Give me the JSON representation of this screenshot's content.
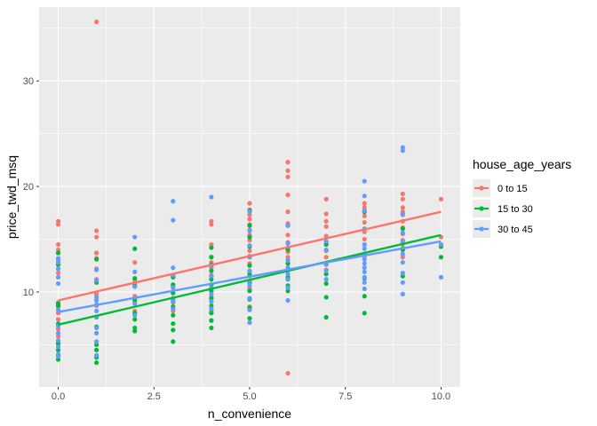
{
  "chart_data": {
    "type": "scatter",
    "xlabel": "n_convenience",
    "ylabel": "price_twd_msq",
    "xlim": [
      -0.5,
      10.5
    ],
    "ylim": [
      1.0,
      37.0
    ],
    "x_ticks": [
      0,
      2.5,
      5,
      7.5,
      10
    ],
    "x_tick_labels": [
      "0.0",
      "2.5",
      "5.0",
      "7.5",
      "10.0"
    ],
    "y_ticks": [
      10,
      20,
      30
    ],
    "y_tick_labels": [
      "10",
      "20",
      "30"
    ],
    "grid": true,
    "legend": {
      "title": "house_age_years",
      "placement": "right"
    },
    "series": [
      {
        "name": "0 to 15",
        "color": "#F8766D",
        "trend": {
          "x": [
            0,
            10
          ],
          "y": [
            9.2,
            17.6
          ]
        },
        "points": [
          [
            0,
            16.7
          ],
          [
            0,
            16.4
          ],
          [
            0,
            14.5
          ],
          [
            0,
            14.0
          ],
          [
            0,
            13.7
          ],
          [
            0,
            13.0
          ],
          [
            0,
            12.6
          ],
          [
            0,
            12.2
          ],
          [
            0,
            11.8
          ],
          [
            0,
            9.0
          ],
          [
            0,
            8.6
          ],
          [
            0,
            8.0
          ],
          [
            0,
            7.4
          ],
          [
            0,
            6.5
          ],
          [
            0,
            5.8
          ],
          [
            0,
            5.2
          ],
          [
            1,
            35.6
          ],
          [
            1,
            15.8
          ],
          [
            1,
            15.2
          ],
          [
            1,
            13.7
          ],
          [
            1,
            13.2
          ],
          [
            1,
            12.2
          ],
          [
            1,
            11.2
          ],
          [
            1,
            9.8
          ],
          [
            1,
            8.7
          ],
          [
            1,
            7.6
          ],
          [
            1,
            6.6
          ],
          [
            2,
            12.8
          ],
          [
            2,
            11.2
          ],
          [
            2,
            10.9
          ],
          [
            2,
            10.6
          ],
          [
            2,
            9.6
          ],
          [
            2,
            9.0
          ],
          [
            2,
            8.2
          ],
          [
            3,
            11.5
          ],
          [
            3,
            10.6
          ],
          [
            3,
            9.9
          ],
          [
            3,
            9.0
          ],
          [
            3,
            8.2
          ],
          [
            4,
            16.7
          ],
          [
            4,
            16.4
          ],
          [
            4,
            14.5
          ],
          [
            4,
            13.3
          ],
          [
            4,
            12.8
          ],
          [
            4,
            12.3
          ],
          [
            4,
            11.6
          ],
          [
            4,
            10.1
          ],
          [
            4,
            9.5
          ],
          [
            4,
            8.2
          ],
          [
            4,
            7.3
          ],
          [
            5,
            18.4
          ],
          [
            5,
            17.8
          ],
          [
            5,
            17.3
          ],
          [
            5,
            16.9
          ],
          [
            5,
            16.4
          ],
          [
            5,
            15.9
          ],
          [
            5,
            15.4
          ],
          [
            5,
            14.9
          ],
          [
            5,
            14.4
          ],
          [
            5,
            13.9
          ],
          [
            5,
            13.4
          ],
          [
            5,
            12.7
          ],
          [
            5,
            12.0
          ],
          [
            5,
            11.5
          ],
          [
            5,
            10.9
          ],
          [
            5,
            10.3
          ],
          [
            5,
            9.4
          ],
          [
            5,
            8.6
          ],
          [
            6,
            22.3
          ],
          [
            6,
            21.5
          ],
          [
            6,
            20.9
          ],
          [
            6,
            19.2
          ],
          [
            6,
            17.6
          ],
          [
            6,
            16.5
          ],
          [
            6,
            15.4
          ],
          [
            6,
            14.7
          ],
          [
            6,
            14.2
          ],
          [
            6,
            13.8
          ],
          [
            6,
            13.3
          ],
          [
            6,
            12.7
          ],
          [
            6,
            12.0
          ],
          [
            6,
            11.2
          ],
          [
            6,
            2.3
          ],
          [
            7,
            18.8
          ],
          [
            7,
            17.4
          ],
          [
            7,
            16.7
          ],
          [
            7,
            16.2
          ],
          [
            7,
            15.3
          ],
          [
            7,
            14.6
          ],
          [
            7,
            13.9
          ],
          [
            7,
            13.3
          ],
          [
            7,
            12.6
          ],
          [
            7,
            12.1
          ],
          [
            8,
            18.4
          ],
          [
            8,
            18.0
          ],
          [
            8,
            17.6
          ],
          [
            8,
            17.2
          ],
          [
            8,
            16.6
          ],
          [
            8,
            15.7
          ],
          [
            8,
            15.0
          ],
          [
            8,
            14.5
          ],
          [
            8,
            13.4
          ],
          [
            9,
            19.3
          ],
          [
            9,
            18.8
          ],
          [
            9,
            18.0
          ],
          [
            9,
            17.6
          ],
          [
            9,
            17.3
          ],
          [
            9,
            16.7
          ],
          [
            9,
            16.1
          ],
          [
            9,
            15.5
          ],
          [
            9,
            14.9
          ],
          [
            9,
            14.2
          ],
          [
            9,
            13.3
          ],
          [
            10,
            18.8
          ],
          [
            10,
            15.2
          ]
        ]
      },
      {
        "name": "15 to 30",
        "color": "#00BA38",
        "trend": {
          "x": [
            0,
            10
          ],
          "y": [
            6.9,
            15.4
          ]
        },
        "points": [
          [
            0,
            13.7
          ],
          [
            0,
            12.6
          ],
          [
            0,
            8.9
          ],
          [
            0,
            8.7
          ],
          [
            0,
            7.0
          ],
          [
            0,
            6.1
          ],
          [
            0,
            5.1
          ],
          [
            0,
            4.5
          ],
          [
            0,
            4.0
          ],
          [
            0,
            3.6
          ],
          [
            1,
            13.1
          ],
          [
            1,
            10.9
          ],
          [
            1,
            6.7
          ],
          [
            1,
            5.0
          ],
          [
            1,
            4.5
          ],
          [
            1,
            3.8
          ],
          [
            1,
            3.3
          ],
          [
            2,
            14.1
          ],
          [
            2,
            11.3
          ],
          [
            2,
            10.6
          ],
          [
            2,
            9.2
          ],
          [
            2,
            8.0
          ],
          [
            2,
            7.4
          ],
          [
            2,
            6.6
          ],
          [
            2,
            6.3
          ],
          [
            3,
            11.4
          ],
          [
            3,
            10.7
          ],
          [
            3,
            9.9
          ],
          [
            3,
            9.2
          ],
          [
            3,
            8.6
          ],
          [
            3,
            7.8
          ],
          [
            3,
            7.0
          ],
          [
            3,
            6.4
          ],
          [
            3,
            5.3
          ],
          [
            4,
            14.2
          ],
          [
            4,
            13.3
          ],
          [
            4,
            12.6
          ],
          [
            4,
            12.0
          ],
          [
            4,
            11.2
          ],
          [
            4,
            10.7
          ],
          [
            4,
            10.1
          ],
          [
            4,
            9.4
          ],
          [
            4,
            8.7
          ],
          [
            4,
            8.0
          ],
          [
            4,
            7.3
          ],
          [
            4,
            6.6
          ],
          [
            5,
            17.7
          ],
          [
            5,
            16.3
          ],
          [
            5,
            15.2
          ],
          [
            5,
            14.3
          ],
          [
            5,
            13.3
          ],
          [
            5,
            12.5
          ],
          [
            5,
            11.7
          ],
          [
            5,
            10.9
          ],
          [
            5,
            10.1
          ],
          [
            5,
            9.3
          ],
          [
            5,
            8.5
          ],
          [
            5,
            7.5
          ],
          [
            6,
            16.3
          ],
          [
            6,
            14.0
          ],
          [
            6,
            12.7
          ],
          [
            6,
            11.4
          ],
          [
            6,
            10.6
          ],
          [
            6,
            10.1
          ],
          [
            7,
            14.5
          ],
          [
            7,
            11.7
          ],
          [
            7,
            10.8
          ],
          [
            7,
            9.5
          ],
          [
            7,
            7.6
          ],
          [
            8,
            17.6
          ],
          [
            8,
            13.6
          ],
          [
            8,
            11.3
          ],
          [
            8,
            9.6
          ],
          [
            8,
            8.0
          ],
          [
            9,
            16.0
          ],
          [
            9,
            14.6
          ],
          [
            9,
            14.0
          ],
          [
            9,
            11.5
          ],
          [
            10,
            14.3
          ],
          [
            10,
            13.3
          ]
        ]
      },
      {
        "name": "30 to 45",
        "color": "#619CFF",
        "trend": {
          "x": [
            0,
            10
          ],
          "y": [
            8.1,
            14.8
          ]
        },
        "points": [
          [
            0,
            13.2
          ],
          [
            0,
            12.8
          ],
          [
            0,
            12.2
          ],
          [
            0,
            11.4
          ],
          [
            0,
            10.8
          ],
          [
            0,
            8.3
          ],
          [
            0,
            6.8
          ],
          [
            0,
            6.1
          ],
          [
            0,
            5.4
          ],
          [
            0,
            4.8
          ],
          [
            0,
            4.1
          ],
          [
            0,
            3.9
          ],
          [
            1,
            12.1
          ],
          [
            1,
            11.1
          ],
          [
            1,
            9.5
          ],
          [
            1,
            9.2
          ],
          [
            1,
            8.8
          ],
          [
            1,
            8.2
          ],
          [
            1,
            7.6
          ],
          [
            1,
            6.6
          ],
          [
            1,
            6.1
          ],
          [
            1,
            5.3
          ],
          [
            1,
            4.0
          ],
          [
            2,
            15.2
          ],
          [
            2,
            11.9
          ],
          [
            2,
            10.5
          ],
          [
            2,
            8.9
          ],
          [
            2,
            7.8
          ],
          [
            3,
            18.6
          ],
          [
            3,
            16.8
          ],
          [
            3,
            12.3
          ],
          [
            3,
            11.6
          ],
          [
            3,
            10.4
          ],
          [
            3,
            9.4
          ],
          [
            3,
            9.1
          ],
          [
            3,
            8.4
          ],
          [
            4,
            19.0
          ],
          [
            4,
            12.5
          ],
          [
            4,
            11.5
          ],
          [
            4,
            10.4
          ],
          [
            4,
            9.8
          ],
          [
            4,
            9.1
          ],
          [
            4,
            8.4
          ],
          [
            5,
            17.6
          ],
          [
            5,
            15.8
          ],
          [
            5,
            14.4
          ],
          [
            5,
            13.3
          ],
          [
            5,
            12.0
          ],
          [
            5,
            11.0
          ],
          [
            5,
            10.6
          ],
          [
            5,
            9.4
          ],
          [
            5,
            8.3
          ],
          [
            5,
            7.1
          ],
          [
            6,
            16.3
          ],
          [
            6,
            14.6
          ],
          [
            6,
            13.0
          ],
          [
            6,
            12.3
          ],
          [
            6,
            11.7
          ],
          [
            6,
            11.2
          ],
          [
            6,
            10.4
          ],
          [
            6,
            9.2
          ],
          [
            7,
            14.8
          ],
          [
            7,
            14.0
          ],
          [
            7,
            12.6
          ],
          [
            7,
            12.0
          ],
          [
            7,
            11.2
          ],
          [
            8,
            20.5
          ],
          [
            8,
            19.1
          ],
          [
            8,
            17.7
          ],
          [
            8,
            16.0
          ],
          [
            8,
            14.5
          ],
          [
            8,
            14.1
          ],
          [
            8,
            13.6
          ],
          [
            8,
            13.1
          ],
          [
            8,
            12.7
          ],
          [
            8,
            12.3
          ],
          [
            8,
            11.9
          ],
          [
            8,
            11.4
          ],
          [
            8,
            10.9
          ],
          [
            8,
            10.3
          ],
          [
            9,
            23.7
          ],
          [
            9,
            23.4
          ],
          [
            9,
            17.4
          ],
          [
            9,
            15.6
          ],
          [
            9,
            14.8
          ],
          [
            9,
            13.6
          ],
          [
            9,
            12.8
          ],
          [
            9,
            11.8
          ],
          [
            9,
            10.9
          ],
          [
            9,
            9.8
          ],
          [
            10,
            14.5
          ],
          [
            10,
            11.4
          ]
        ]
      }
    ]
  }
}
